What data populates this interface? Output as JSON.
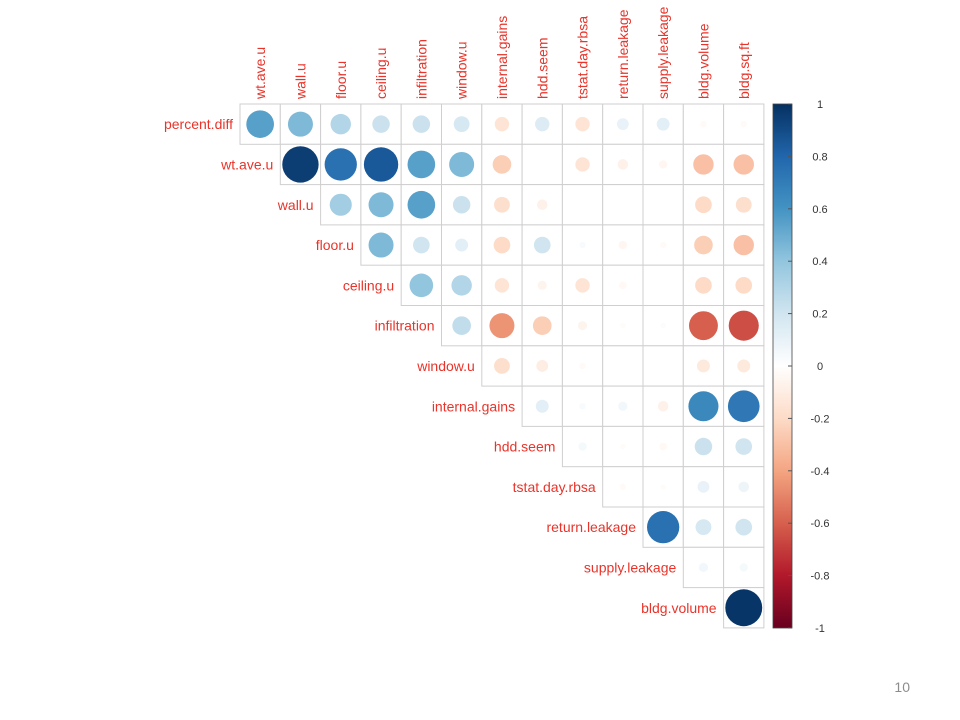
{
  "slide": {
    "page_number": "10"
  },
  "chart_data": {
    "type": "heatmap",
    "style": "corrplot-upper-circle",
    "title": "",
    "row_labels": [
      "percent.diff",
      "wt.ave.u",
      "wall.u",
      "floor.u",
      "ceiling.u",
      "infiltration",
      "window.u",
      "internal.gains",
      "hdd.seem",
      "tstat.day.rbsa",
      "return.leakage",
      "supply.leakage",
      "bldg.volume"
    ],
    "col_labels": [
      "wt.ave.u",
      "wall.u",
      "floor.u",
      "ceiling.u",
      "infiltration",
      "window.u",
      "internal.gains",
      "hdd.seem",
      "tstat.day.rbsa",
      "return.leakage",
      "supply.leakage",
      "bldg.volume",
      "bldg.sq.ft"
    ],
    "matrix": [
      [
        0.55,
        0.45,
        0.3,
        0.22,
        0.22,
        0.18,
        -0.15,
        0.15,
        -0.15,
        0.1,
        0.12,
        -0.03,
        -0.03
      ],
      [
        null,
        0.95,
        0.75,
        0.85,
        0.55,
        0.45,
        -0.25,
        0.0,
        -0.15,
        -0.08,
        -0.05,
        -0.3,
        -0.3
      ],
      [
        null,
        null,
        0.35,
        0.45,
        0.55,
        0.22,
        -0.18,
        -0.08,
        0.0,
        0.0,
        0.0,
        -0.2,
        -0.18
      ],
      [
        null,
        null,
        null,
        0.45,
        0.2,
        0.12,
        -0.2,
        0.2,
        0.03,
        -0.05,
        -0.03,
        -0.25,
        -0.3
      ],
      [
        null,
        null,
        null,
        null,
        0.4,
        0.3,
        -0.15,
        -0.06,
        -0.15,
        -0.04,
        0.0,
        -0.2,
        -0.2
      ],
      [
        null,
        null,
        null,
        null,
        null,
        0.25,
        -0.45,
        -0.25,
        -0.06,
        -0.02,
        0.02,
        -0.6,
        -0.65
      ],
      [
        null,
        null,
        null,
        null,
        null,
        null,
        -0.18,
        -0.1,
        -0.03,
        0.0,
        0.0,
        -0.12,
        -0.12
      ],
      [
        null,
        null,
        null,
        null,
        null,
        null,
        null,
        0.12,
        0.03,
        0.06,
        -0.08,
        0.65,
        0.72
      ],
      [
        null,
        null,
        null,
        null,
        null,
        null,
        null,
        null,
        0.05,
        -0.02,
        -0.04,
        0.22,
        0.2
      ],
      [
        null,
        null,
        null,
        null,
        null,
        null,
        null,
        null,
        null,
        -0.03,
        -0.02,
        0.1,
        0.08
      ],
      [
        null,
        null,
        null,
        null,
        null,
        null,
        null,
        null,
        null,
        null,
        0.75,
        0.18,
        0.2
      ],
      [
        null,
        null,
        null,
        null,
        null,
        null,
        null,
        null,
        null,
        null,
        null,
        0.06,
        0.05
      ],
      [
        null,
        null,
        null,
        null,
        null,
        null,
        null,
        null,
        null,
        null,
        null,
        null,
        0.98
      ]
    ],
    "colorbar": {
      "range": [
        -1,
        1
      ],
      "ticks": [
        "1",
        "0.8",
        "0.6",
        "0.4",
        "0.2",
        "0",
        "-0.2",
        "-0.4",
        "-0.6",
        "-0.8",
        "-1"
      ],
      "stops": [
        "#67001F",
        "#B2182B",
        "#D6604D",
        "#F4A582",
        "#FDDBC7",
        "#FFFFFF",
        "#D1E5F0",
        "#92C5DE",
        "#4393C3",
        "#2166AC",
        "#053061"
      ]
    },
    "label_color": "#E8342A"
  }
}
